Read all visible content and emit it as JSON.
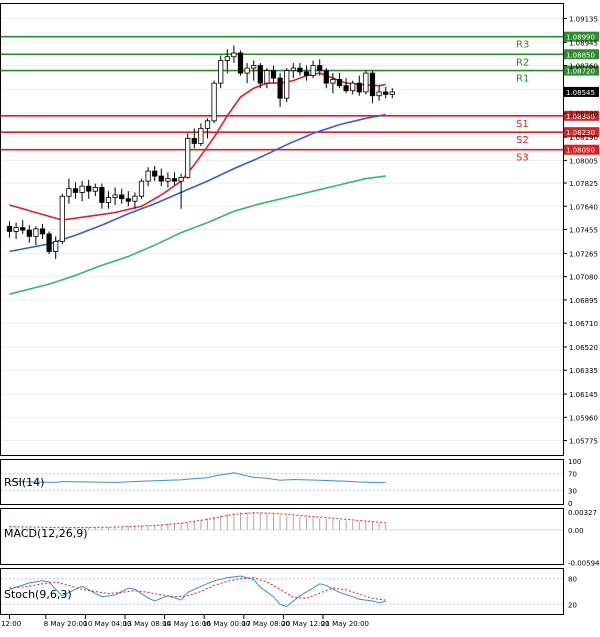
{
  "chart_data": {
    "type": "candlestick",
    "instrument_note": "Four-hour price chart with moving averages, pivot levels and indicator sub-panels",
    "main": {
      "ylim": [
        1.0566,
        1.0925
      ],
      "y_ticks": [
        "1.09135",
        "1.08945",
        "1.08760",
        "1.08570",
        "1.08380",
        "1.08190",
        "1.08005",
        "1.07825",
        "1.07640",
        "1.07455",
        "1.07265",
        "1.07080",
        "1.06895",
        "1.06710",
        "1.06520",
        "1.06335",
        "1.06145",
        "1.05960",
        "1.05775"
      ],
      "current_price": "1.08545",
      "levels": [
        {
          "name": "R3",
          "value": 1.0899,
          "label": "1.08990",
          "color": "#2e8b2e"
        },
        {
          "name": "R2",
          "value": 1.0885,
          "label": "1.08850",
          "color": "#2e8b2e"
        },
        {
          "name": "R1",
          "value": 1.0872,
          "label": "1.08720",
          "color": "#2e8b2e"
        },
        {
          "name": "S1",
          "value": 1.0836,
          "label": "1.08360",
          "color": "#e02020"
        },
        {
          "name": "S2",
          "value": 1.0823,
          "label": "1.08230",
          "color": "#e02020"
        },
        {
          "name": "S3",
          "value": 1.0809,
          "label": "1.08090",
          "color": "#e02020"
        }
      ],
      "candles": [
        [
          1.0748,
          1.0752,
          1.0739,
          1.0744
        ],
        [
          1.0744,
          1.0751,
          1.0738,
          1.0747
        ],
        [
          1.0747,
          1.0753,
          1.0742,
          1.0745
        ],
        [
          1.0745,
          1.0749,
          1.0735,
          1.074
        ],
        [
          1.074,
          1.0748,
          1.0733,
          1.0746
        ],
        [
          1.0746,
          1.075,
          1.0738,
          1.0742
        ],
        [
          1.0742,
          1.0744,
          1.0726,
          1.0728
        ],
        [
          1.0728,
          1.074,
          1.0722,
          1.0736
        ],
        [
          1.0736,
          1.0774,
          1.0734,
          1.0772
        ],
        [
          1.0772,
          1.0786,
          1.0766,
          1.0778
        ],
        [
          1.0778,
          1.0783,
          1.077,
          1.0775
        ],
        [
          1.0775,
          1.0784,
          1.0768,
          1.078
        ],
        [
          1.078,
          1.0785,
          1.077,
          1.0776
        ],
        [
          1.0776,
          1.0782,
          1.0772,
          1.0779
        ],
        [
          1.0779,
          1.0782,
          1.0762,
          1.0767
        ],
        [
          1.0767,
          1.0776,
          1.0762,
          1.0771
        ],
        [
          1.0771,
          1.0779,
          1.0765,
          1.0773
        ],
        [
          1.0773,
          1.0778,
          1.0766,
          1.077
        ],
        [
          1.077,
          1.0776,
          1.0764,
          1.0768
        ],
        [
          1.0768,
          1.0775,
          1.0762,
          1.0772
        ],
        [
          1.0772,
          1.0786,
          1.077,
          1.0784
        ],
        [
          1.0784,
          1.0795,
          1.078,
          1.0792
        ],
        [
          1.0792,
          1.0796,
          1.0784,
          1.0788
        ],
        [
          1.0788,
          1.0794,
          1.078,
          1.0784
        ],
        [
          1.0784,
          1.0791,
          1.0779,
          1.0786
        ],
        [
          1.0786,
          1.0791,
          1.0781,
          1.0784
        ],
        [
          1.0784,
          1.079,
          1.0762,
          1.0787
        ],
        [
          1.0787,
          1.0822,
          1.0786,
          1.0818
        ],
        [
          1.0818,
          1.0826,
          1.081,
          1.0814
        ],
        [
          1.0814,
          1.083,
          1.0812,
          1.0826
        ],
        [
          1.0826,
          1.0834,
          1.0818,
          1.0832
        ],
        [
          1.0832,
          1.0864,
          1.083,
          1.0862
        ],
        [
          1.0862,
          1.0884,
          1.0858,
          1.088
        ],
        [
          1.088,
          1.0889,
          1.087,
          1.0883
        ],
        [
          1.0883,
          1.0892,
          1.0878,
          1.0886
        ],
        [
          1.0886,
          1.0888,
          1.0868,
          1.087
        ],
        [
          1.087,
          1.0878,
          1.0862,
          1.0874
        ],
        [
          1.0874,
          1.088,
          1.0864,
          1.0876
        ],
        [
          1.0876,
          1.0878,
          1.0858,
          1.0862
        ],
        [
          1.0862,
          1.0874,
          1.0858,
          1.0872
        ],
        [
          1.0872,
          1.0876,
          1.0862,
          1.0866
        ],
        [
          1.0866,
          1.087,
          1.0843,
          1.085
        ],
        [
          1.085,
          1.0874,
          1.0847,
          1.0872
        ],
        [
          1.0872,
          1.0878,
          1.0866,
          1.0874
        ],
        [
          1.0874,
          1.0878,
          1.0868,
          1.0871
        ],
        [
          1.0871,
          1.0876,
          1.0864,
          1.0868
        ],
        [
          1.0868,
          1.088,
          1.0866,
          1.0876
        ],
        [
          1.0876,
          1.0881,
          1.0868,
          1.0872
        ],
        [
          1.0872,
          1.0874,
          1.0858,
          1.0862
        ],
        [
          1.0862,
          1.087,
          1.0854,
          1.0865
        ],
        [
          1.0865,
          1.087,
          1.0858,
          1.086
        ],
        [
          1.086,
          1.0866,
          1.0854,
          1.0856
        ],
        [
          1.0856,
          1.0864,
          1.0853,
          1.0862
        ],
        [
          1.0862,
          1.0868,
          1.0852,
          1.0855
        ],
        [
          1.0855,
          1.0872,
          1.0853,
          1.087
        ],
        [
          1.087,
          1.0872,
          1.0846,
          1.0852
        ],
        [
          1.0852,
          1.086,
          1.0848,
          1.0855
        ],
        [
          1.0855,
          1.0859,
          1.085,
          1.0853
        ],
        [
          1.0853,
          1.0858,
          1.085,
          1.0855
        ]
      ],
      "ma_red": [
        [
          0,
          1.0765
        ],
        [
          8,
          1.0753
        ],
        [
          12,
          1.0756
        ],
        [
          16,
          1.0759
        ],
        [
          20,
          1.0764
        ],
        [
          23,
          1.0773
        ],
        [
          26,
          1.0784
        ],
        [
          28,
          1.0797
        ],
        [
          31,
          1.0819
        ],
        [
          33,
          1.0836
        ],
        [
          35,
          1.0851
        ],
        [
          37,
          1.0858
        ],
        [
          39,
          1.0862
        ],
        [
          41,
          1.0862
        ],
        [
          43,
          1.0864
        ],
        [
          45,
          1.0868
        ],
        [
          47,
          1.087
        ],
        [
          49,
          1.0866
        ],
        [
          51,
          1.0862
        ],
        [
          53,
          1.0861
        ],
        [
          56,
          1.086
        ],
        [
          57,
          1.0861
        ]
      ],
      "ma_blue": [
        [
          0,
          1.0728
        ],
        [
          6,
          1.0734
        ],
        [
          10,
          1.0741
        ],
        [
          14,
          1.0749
        ],
        [
          18,
          1.0758
        ],
        [
          22,
          1.0766
        ],
        [
          26,
          1.0775
        ],
        [
          30,
          1.0784
        ],
        [
          34,
          1.0794
        ],
        [
          38,
          1.0803
        ],
        [
          42,
          1.0813
        ],
        [
          46,
          1.0822
        ],
        [
          50,
          1.0829
        ],
        [
          54,
          1.0834
        ],
        [
          57,
          1.0837
        ]
      ],
      "ma_green": [
        [
          0,
          1.0694
        ],
        [
          6,
          1.0702
        ],
        [
          10,
          1.0709
        ],
        [
          14,
          1.0717
        ],
        [
          18,
          1.0724
        ],
        [
          22,
          1.0733
        ],
        [
          26,
          1.0743
        ],
        [
          30,
          1.0751
        ],
        [
          34,
          1.076
        ],
        [
          38,
          1.0766
        ],
        [
          42,
          1.0771
        ],
        [
          46,
          1.0776
        ],
        [
          50,
          1.0781
        ],
        [
          54,
          1.0786
        ],
        [
          57,
          1.0788
        ]
      ]
    },
    "rsi": {
      "label": "RSI(14)",
      "ylim": [
        0,
        100
      ],
      "ticks": [
        "100",
        "70",
        "30",
        "0"
      ],
      "values": [
        [
          0,
          52
        ],
        [
          4,
          50
        ],
        [
          7,
          49
        ],
        [
          8,
          51
        ],
        [
          12,
          50
        ],
        [
          16,
          49
        ],
        [
          20,
          52
        ],
        [
          24,
          54
        ],
        [
          26,
          55
        ],
        [
          27,
          57
        ],
        [
          30,
          60
        ],
        [
          31,
          64
        ],
        [
          32,
          67
        ],
        [
          33,
          69
        ],
        [
          34,
          72
        ],
        [
          35,
          68
        ],
        [
          37,
          61
        ],
        [
          39,
          59
        ],
        [
          41,
          54
        ],
        [
          43,
          56
        ],
        [
          45,
          55
        ],
        [
          47,
          54
        ],
        [
          49,
          53
        ],
        [
          51,
          52
        ],
        [
          53,
          50
        ],
        [
          55,
          49
        ],
        [
          57,
          49
        ]
      ]
    },
    "macd": {
      "label": "MACD(12,26,9)",
      "ticks": [
        "0.00327",
        "0.00",
        "-0.00594"
      ],
      "ylim": [
        -0.006,
        0.0036
      ],
      "histogram": [
        0.0005,
        0.0005,
        0.0004,
        0.0004,
        0.0003,
        0.0003,
        0.0002,
        0.0002,
        0.0003,
        0.0004,
        0.0004,
        0.0005,
        0.0005,
        0.0005,
        0.0005,
        0.0005,
        0.0006,
        0.0006,
        0.0006,
        0.0006,
        0.0007,
        0.0008,
        0.0009,
        0.001,
        0.0011,
        0.0011,
        0.0012,
        0.0014,
        0.0016,
        0.0018,
        0.0021,
        0.0024,
        0.0027,
        0.0029,
        0.0031,
        0.0032,
        0.0032,
        0.0032,
        0.0031,
        0.003,
        0.0029,
        0.0027,
        0.0026,
        0.0025,
        0.0024,
        0.0023,
        0.0022,
        0.0021,
        0.002,
        0.0019,
        0.0018,
        0.0017,
        0.0016,
        0.0015,
        0.0015,
        0.0014,
        0.0013,
        0.0012
      ],
      "signal": [
        [
          0,
          0.0006
        ],
        [
          8,
          0.0004
        ],
        [
          16,
          0.0005
        ],
        [
          22,
          0.0008
        ],
        [
          26,
          0.0012
        ],
        [
          30,
          0.0019
        ],
        [
          34,
          0.0028
        ],
        [
          37,
          0.0031
        ],
        [
          40,
          0.003
        ],
        [
          44,
          0.0026
        ],
        [
          48,
          0.0022
        ],
        [
          52,
          0.0018
        ],
        [
          57,
          0.0013
        ]
      ]
    },
    "stoch": {
      "label": "Stoch(9,6,3)",
      "ylim": [
        0,
        100
      ],
      "ticks": [
        "80",
        "20"
      ],
      "main_line": [
        [
          0,
          55
        ],
        [
          3,
          70
        ],
        [
          5,
          75
        ],
        [
          6,
          72
        ],
        [
          7,
          55
        ],
        [
          8,
          40
        ],
        [
          9,
          48
        ],
        [
          11,
          62
        ],
        [
          12,
          54
        ],
        [
          14,
          38
        ],
        [
          16,
          42
        ],
        [
          18,
          58
        ],
        [
          19,
          55
        ],
        [
          21,
          35
        ],
        [
          22,
          28
        ],
        [
          24,
          40
        ],
        [
          26,
          30
        ],
        [
          27,
          48
        ],
        [
          29,
          62
        ],
        [
          31,
          75
        ],
        [
          33,
          82
        ],
        [
          35,
          86
        ],
        [
          37,
          78
        ],
        [
          38,
          60
        ],
        [
          40,
          38
        ],
        [
          41,
          20
        ],
        [
          42,
          15
        ],
        [
          44,
          40
        ],
        [
          46,
          58
        ],
        [
          47,
          68
        ],
        [
          48,
          64
        ],
        [
          50,
          48
        ],
        [
          52,
          38
        ],
        [
          53,
          32
        ],
        [
          55,
          28
        ],
        [
          56,
          24
        ],
        [
          57,
          27
        ]
      ],
      "signal_line": [
        [
          0,
          58
        ],
        [
          3,
          62
        ],
        [
          5,
          68
        ],
        [
          7,
          72
        ],
        [
          9,
          64
        ],
        [
          11,
          55
        ],
        [
          13,
          50
        ],
        [
          15,
          45
        ],
        [
          17,
          48
        ],
        [
          19,
          52
        ],
        [
          21,
          48
        ],
        [
          23,
          42
        ],
        [
          25,
          38
        ],
        [
          27,
          40
        ],
        [
          29,
          50
        ],
        [
          31,
          64
        ],
        [
          33,
          74
        ],
        [
          35,
          80
        ],
        [
          37,
          82
        ],
        [
          39,
          72
        ],
        [
          41,
          55
        ],
        [
          43,
          36
        ],
        [
          45,
          34
        ],
        [
          47,
          46
        ],
        [
          49,
          58
        ],
        [
          51,
          54
        ],
        [
          53,
          44
        ],
        [
          55,
          34
        ],
        [
          57,
          30
        ]
      ]
    },
    "x_ticks": [
      {
        "i": 0,
        "label": "12:00"
      },
      {
        "i": 5.5,
        "label": "8 May 20:00"
      },
      {
        "i": 11.5,
        "label": "10 May 04:00"
      },
      {
        "i": 17.5,
        "label": "13 May 08:00"
      },
      {
        "i": 23.5,
        "label": "14 May 16:00"
      },
      {
        "i": 29.5,
        "label": "16 May 00:00"
      },
      {
        "i": 35.5,
        "label": "17 May 08:00"
      },
      {
        "i": 41.5,
        "label": "20 May 12:00"
      },
      {
        "i": 47.5,
        "label": "21 May 20:00"
      }
    ]
  }
}
